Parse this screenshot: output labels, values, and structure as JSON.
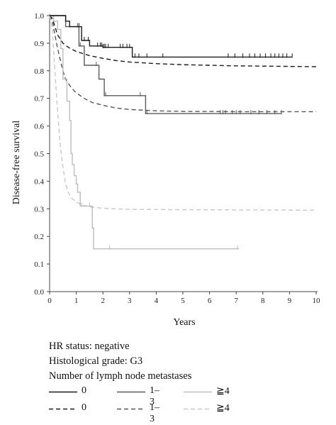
{
  "chart_data": {
    "type": "line",
    "subtype": "kaplan-meier step",
    "ylabel": "Disease-free survival",
    "xlabel": "Years",
    "xlim": [
      0,
      10
    ],
    "ylim": [
      0,
      1.0
    ],
    "x_ticks": [
      "0",
      "1",
      "2",
      "3",
      "4",
      "5",
      "6",
      "7",
      "8",
      "9",
      "10"
    ],
    "y_ticks": [
      "0.0",
      "0.1",
      "0.2",
      "0.3",
      "0.4",
      "0.5",
      "0.6",
      "0.7",
      "0.8",
      "0.9",
      "1.0"
    ],
    "grid": false,
    "series": [
      {
        "name": "0",
        "style": "solid",
        "color": "#1a1a1a",
        "points": [
          [
            0,
            1.0
          ],
          [
            0.6,
            1.0
          ],
          [
            0.6,
            0.98
          ],
          [
            0.75,
            0.98
          ],
          [
            0.75,
            0.96
          ],
          [
            1.2,
            0.96
          ],
          [
            1.2,
            0.91
          ],
          [
            1.5,
            0.91
          ],
          [
            1.5,
            0.89
          ],
          [
            2.0,
            0.89
          ],
          [
            2.0,
            0.885
          ],
          [
            3.1,
            0.885
          ],
          [
            3.1,
            0.85
          ],
          [
            9.1,
            0.85
          ]
        ],
        "censor_x": [
          1.1,
          1.3,
          1.45,
          1.8,
          1.9,
          1.95,
          2.0,
          2.05,
          2.1,
          2.2,
          2.65,
          2.75,
          2.9,
          3.0,
          3.2,
          3.35,
          3.65,
          4.25,
          6.7,
          6.95,
          7.25,
          7.5,
          7.7,
          7.9,
          8.1,
          8.3,
          8.45,
          8.6,
          8.75,
          8.9,
          9.1
        ]
      },
      {
        "name": "0",
        "style": "dashed",
        "color": "#1a1a1a",
        "points": [
          [
            0,
            1.0
          ],
          [
            0.1,
            0.99
          ],
          [
            0.2,
            0.96
          ],
          [
            0.3,
            0.93
          ],
          [
            0.5,
            0.9
          ],
          [
            0.7,
            0.885
          ],
          [
            1.0,
            0.87
          ],
          [
            1.5,
            0.855
          ],
          [
            2.0,
            0.845
          ],
          [
            2.5,
            0.837
          ],
          [
            3.0,
            0.832
          ],
          [
            4.0,
            0.826
          ],
          [
            5.0,
            0.822
          ],
          [
            6.0,
            0.82
          ],
          [
            7.0,
            0.818
          ],
          [
            8.0,
            0.817
          ],
          [
            9.0,
            0.816
          ],
          [
            10.0,
            0.815
          ]
        ]
      },
      {
        "name": "1–3",
        "style": "solid",
        "color": "#5a5a5a",
        "points": [
          [
            0,
            1.0
          ],
          [
            0.6,
            1.0
          ],
          [
            0.6,
            0.96
          ],
          [
            1.1,
            0.96
          ],
          [
            1.1,
            0.89
          ],
          [
            1.3,
            0.89
          ],
          [
            1.3,
            0.82
          ],
          [
            1.85,
            0.82
          ],
          [
            1.85,
            0.77
          ],
          [
            2.05,
            0.77
          ],
          [
            2.05,
            0.71
          ],
          [
            3.6,
            0.71
          ],
          [
            3.6,
            0.645
          ],
          [
            8.7,
            0.645
          ]
        ],
        "censor_x": [
          1.05,
          1.15,
          1.75,
          2.1,
          3.4,
          3.65,
          6.4,
          6.5,
          6.6,
          6.85,
          7.0,
          7.15,
          7.55,
          7.85,
          8.15,
          8.45,
          8.7
        ]
      },
      {
        "name": "1–3",
        "style": "dashed",
        "color": "#555555",
        "points": [
          [
            0,
            1.0
          ],
          [
            0.1,
            0.98
          ],
          [
            0.2,
            0.93
          ],
          [
            0.3,
            0.88
          ],
          [
            0.4,
            0.84
          ],
          [
            0.5,
            0.8
          ],
          [
            0.6,
            0.77
          ],
          [
            0.8,
            0.74
          ],
          [
            1.0,
            0.72
          ],
          [
            1.3,
            0.7
          ],
          [
            1.6,
            0.685
          ],
          [
            2.0,
            0.675
          ],
          [
            2.5,
            0.665
          ],
          [
            3.0,
            0.66
          ],
          [
            4.0,
            0.655
          ],
          [
            5.0,
            0.653
          ],
          [
            7.0,
            0.652
          ],
          [
            10.0,
            0.652
          ]
        ]
      },
      {
        "name": "≧4",
        "style": "solid",
        "color": "#bdbdbd",
        "points": [
          [
            0,
            1.0
          ],
          [
            0.15,
            1.0
          ],
          [
            0.15,
            0.98
          ],
          [
            0.3,
            0.98
          ],
          [
            0.3,
            0.95
          ],
          [
            0.42,
            0.95
          ],
          [
            0.42,
            0.88
          ],
          [
            0.5,
            0.88
          ],
          [
            0.5,
            0.77
          ],
          [
            0.65,
            0.77
          ],
          [
            0.65,
            0.69
          ],
          [
            0.75,
            0.69
          ],
          [
            0.75,
            0.62
          ],
          [
            0.8,
            0.62
          ],
          [
            0.8,
            0.5
          ],
          [
            0.85,
            0.5
          ],
          [
            0.85,
            0.46
          ],
          [
            0.92,
            0.46
          ],
          [
            0.92,
            0.42
          ],
          [
            1.0,
            0.42
          ],
          [
            1.0,
            0.39
          ],
          [
            1.05,
            0.39
          ],
          [
            1.05,
            0.36
          ],
          [
            1.15,
            0.36
          ],
          [
            1.15,
            0.31
          ],
          [
            1.6,
            0.31
          ],
          [
            1.6,
            0.23
          ],
          [
            1.65,
            0.23
          ],
          [
            1.65,
            0.155
          ],
          [
            7.1,
            0.155
          ]
        ],
        "censor_x": [
          1.2,
          1.5,
          2.25,
          7.05
        ]
      },
      {
        "name": "≧4",
        "style": "dashed",
        "color": "#c8c8c8",
        "points": [
          [
            0,
            1.0
          ],
          [
            0.1,
            0.95
          ],
          [
            0.2,
            0.8
          ],
          [
            0.3,
            0.65
          ],
          [
            0.4,
            0.53
          ],
          [
            0.5,
            0.45
          ],
          [
            0.6,
            0.39
          ],
          [
            0.7,
            0.36
          ],
          [
            0.8,
            0.34
          ],
          [
            1.0,
            0.325
          ],
          [
            1.2,
            0.315
          ],
          [
            1.5,
            0.307
          ],
          [
            2.0,
            0.302
          ],
          [
            3.0,
            0.298
          ],
          [
            5.0,
            0.297
          ],
          [
            7.0,
            0.296
          ],
          [
            10.0,
            0.295
          ]
        ]
      }
    ]
  },
  "legend": {
    "line1": "HR status: negative",
    "line2": "Histological grade: G3",
    "line3": "Number of lymph node metastases",
    "solid_labels": [
      "0",
      "1–3",
      "≧4"
    ],
    "dashed_labels": [
      "0",
      "1–3",
      "≧4"
    ]
  }
}
